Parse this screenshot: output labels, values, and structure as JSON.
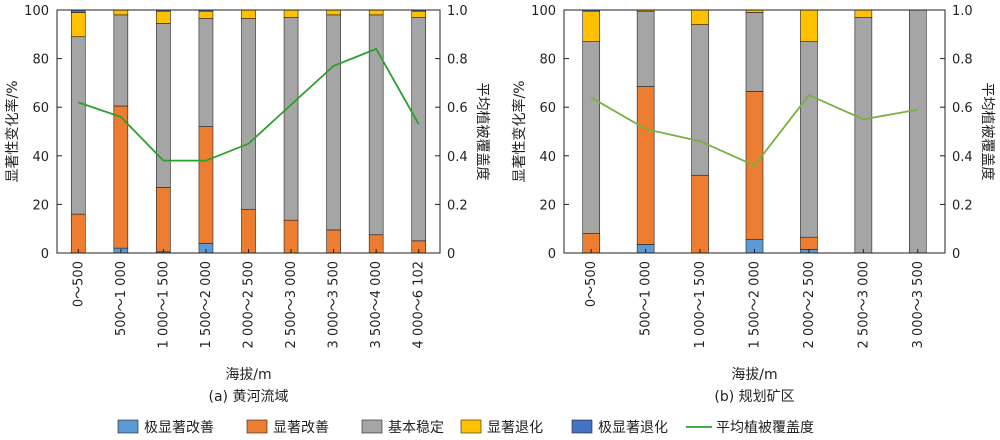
{
  "chart_data": [
    {
      "type": "bar",
      "stacked": true,
      "caption": "(a) 黄河流域",
      "xlabel": "海拔/m",
      "ylabel_left": "显著性变化率/%",
      "ylabel_right": "平均植被覆盖度",
      "ylim_left": [
        0,
        100
      ],
      "ylim_right": [
        0,
        1.0
      ],
      "yticks_left": [
        "0",
        "20",
        "40",
        "60",
        "80",
        "100"
      ],
      "yticks_right": [
        "0",
        "0.2",
        "0.4",
        "0.6",
        "0.8",
        "1.0"
      ],
      "categories": [
        "0～500",
        "500～1 000",
        "1 000～1 500",
        "1 500～2 000",
        "2 000～2 500",
        "2 500～3 000",
        "3 000～3 500",
        "3 500～4 000",
        "4 000～6 102"
      ],
      "series": [
        {
          "name": "极显著改善",
          "color": "#5b9bd5",
          "values": [
            0,
            2,
            0.5,
            4,
            0,
            0,
            0,
            0,
            0
          ]
        },
        {
          "name": "显著改善",
          "color": "#ed7d31",
          "values": [
            16,
            58.5,
            26.5,
            48,
            18,
            13.5,
            9.5,
            7.5,
            5
          ]
        },
        {
          "name": "基本稳定",
          "color": "#a5a5a5",
          "values": [
            73,
            37.5,
            67.5,
            44.5,
            78.5,
            83.5,
            88.5,
            90.5,
            92
          ]
        },
        {
          "name": "显著退化",
          "color": "#ffc000",
          "values": [
            10,
            2,
            5,
            3,
            3.5,
            3,
            2,
            2,
            2.5
          ]
        },
        {
          "name": "极显著退化",
          "color": "#4472c4",
          "values": [
            1,
            0,
            0.5,
            0.5,
            0,
            0,
            0,
            0,
            0.5
          ]
        }
      ],
      "line": {
        "name": "平均植被覆盖度",
        "color": "#2ca02c",
        "values": [
          0.62,
          0.56,
          0.38,
          0.38,
          0.45,
          0.61,
          0.77,
          0.84,
          0.53
        ]
      }
    },
    {
      "type": "bar",
      "stacked": true,
      "caption": "(b) 规划矿区",
      "xlabel": "海拔/m",
      "ylabel_left": "显著性变化率/%",
      "ylabel_right": "平均植被覆盖度",
      "ylim_left": [
        0,
        100
      ],
      "ylim_right": [
        0,
        1.0
      ],
      "yticks_left": [
        "0",
        "20",
        "40",
        "60",
        "80",
        "100"
      ],
      "yticks_right": [
        "0",
        "0.2",
        "0.4",
        "0.6",
        "0.8",
        "1.0"
      ],
      "categories": [
        "0～500",
        "500～1 000",
        "1 000～1 500",
        "1 500～2 000",
        "2 000～2 500",
        "2 500～3 000",
        "3 000～3 500"
      ],
      "series": [
        {
          "name": "极显著改善",
          "color": "#5b9bd5",
          "values": [
            0,
            3.5,
            0,
            5.5,
            1.5,
            0,
            0
          ]
        },
        {
          "name": "显著改善",
          "color": "#ed7d31",
          "values": [
            8,
            65,
            32,
            61,
            5,
            0,
            0
          ]
        },
        {
          "name": "基本稳定",
          "color": "#a5a5a5",
          "values": [
            79,
            31,
            62,
            32.5,
            80.5,
            97,
            100
          ]
        },
        {
          "name": "显著退化",
          "color": "#ffc000",
          "values": [
            12.5,
            0.5,
            6,
            1,
            13,
            3,
            0
          ]
        },
        {
          "name": "极显著退化",
          "color": "#4472c4",
          "values": [
            0.5,
            0,
            0,
            0,
            0,
            0,
            0
          ]
        }
      ],
      "line": {
        "name": "平均植被覆盖度",
        "color": "#76b041",
        "values": [
          0.64,
          0.51,
          0.46,
          0.36,
          0.65,
          0.55,
          0.59
        ]
      }
    }
  ],
  "legend": {
    "placement": "bottom",
    "items": [
      {
        "label": "极显著改善",
        "color": "#5b9bd5",
        "kind": "box"
      },
      {
        "label": "显著改善",
        "color": "#ed7d31",
        "kind": "box"
      },
      {
        "label": "基本稳定",
        "color": "#a5a5a5",
        "kind": "box"
      },
      {
        "label": "显著退化",
        "color": "#ffc000",
        "kind": "box"
      },
      {
        "label": "极显著退化",
        "color": "#4472c4",
        "kind": "box"
      },
      {
        "label": "平均植被覆盖度",
        "color": "#2ca02c",
        "kind": "line"
      }
    ]
  }
}
